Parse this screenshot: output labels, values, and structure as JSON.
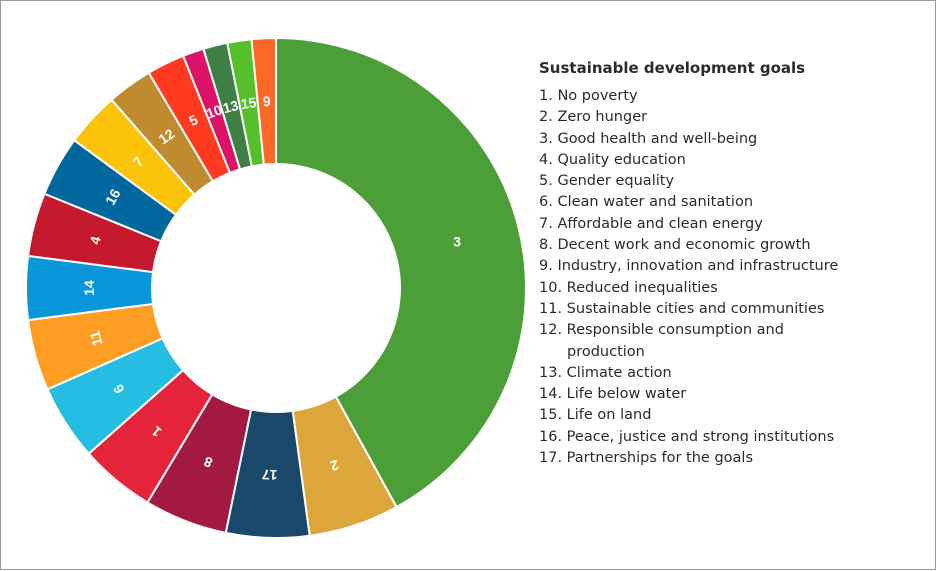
{
  "chart_data": {
    "type": "pie",
    "donut": true,
    "title": "",
    "legend_title": "Sustainable development goals",
    "slices": [
      {
        "label": "3",
        "value": 43.0,
        "color": "#4c9f38"
      },
      {
        "label": "2",
        "value": 6.0,
        "color": "#dda63a"
      },
      {
        "label": "17",
        "value": 5.5,
        "color": "#19486a"
      },
      {
        "label": "8",
        "value": 5.5,
        "color": "#a21942"
      },
      {
        "label": "1",
        "value": 5.0,
        "color": "#e5243b"
      },
      {
        "label": "6",
        "value": 5.0,
        "color": "#26bde2"
      },
      {
        "label": "11",
        "value": 4.7,
        "color": "#fd9d24"
      },
      {
        "label": "14",
        "value": 4.2,
        "color": "#0a97d9"
      },
      {
        "label": "4",
        "value": 4.2,
        "color": "#c5192d"
      },
      {
        "label": "16",
        "value": 4.0,
        "color": "#00689d"
      },
      {
        "label": "7",
        "value": 3.6,
        "color": "#fcc30b"
      },
      {
        "label": "12",
        "value": 3.0,
        "color": "#bf8b2e"
      },
      {
        "label": "5",
        "value": 2.5,
        "color": "#ff3a21"
      },
      {
        "label": "10",
        "value": 1.4,
        "color": "#dd1367"
      },
      {
        "label": "13",
        "value": 1.6,
        "color": "#3f7e44"
      },
      {
        "label": "15",
        "value": 1.6,
        "color": "#56c02b"
      },
      {
        "label": "9",
        "value": 1.6,
        "color": "#fd6925"
      }
    ],
    "legend": [
      {
        "num": "1.",
        "text": "No poverty"
      },
      {
        "num": "2.",
        "text": "Zero hunger"
      },
      {
        "num": "3.",
        "text": "Good health and well-being"
      },
      {
        "num": "4.",
        "text": "Quality education"
      },
      {
        "num": "5.",
        "text": "Gender equality"
      },
      {
        "num": "6.",
        "text": "Clean water and sanitation"
      },
      {
        "num": "7.",
        "text": "Affordable and clean energy"
      },
      {
        "num": "8.",
        "text": "Decent work and economic growth"
      },
      {
        "num": "9.",
        "text": "Industry, innovation and infrastructure"
      },
      {
        "num": "10.",
        "text": "Reduced inequalities"
      },
      {
        "num": "11.",
        "text": "Sustainable cities and communities"
      },
      {
        "num": "12.",
        "text": "Responsible consumption and",
        "text2": "production"
      },
      {
        "num": "13.",
        "text": "Climate action"
      },
      {
        "num": "14.",
        "text": "Life below water"
      },
      {
        "num": "15.",
        "text": "Life on land"
      },
      {
        "num": "16.",
        "text": "Peace, justice and strong institutions"
      },
      {
        "num": "17.",
        "text": "Partnerships for the goals"
      }
    ]
  }
}
